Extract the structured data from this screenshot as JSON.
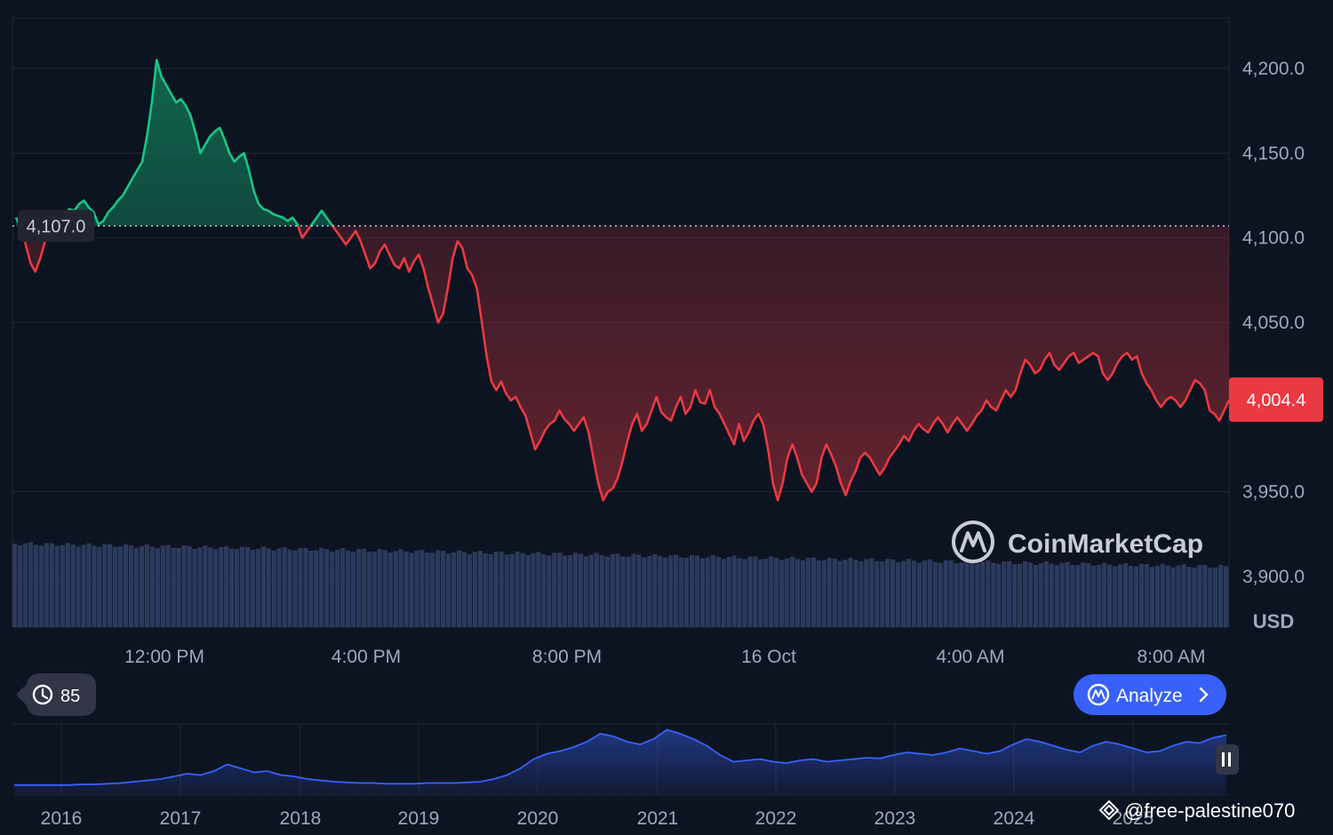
{
  "chart_data": {
    "type": "line",
    "title": "",
    "unit_label": "USD",
    "y_ticks": [
      "4,200.0",
      "4,150.0",
      "4,100.0",
      "4,050.0",
      "4,004.4",
      "3,950.0",
      "3,900.0"
    ],
    "ylim": [
      3870,
      4230
    ],
    "x_ticks": [
      "12:00 PM",
      "4:00 PM",
      "8:00 PM",
      "16 Oct",
      "4:00 AM",
      "8:00 AM"
    ],
    "reference_value": 4107.0,
    "reference_label": "4,107.0",
    "current_value": 4004.4,
    "current_label": "4,004.4",
    "series": [
      {
        "values": [
          4112,
          4106,
          4096,
          4085,
          4080,
          4088,
          4098,
          4104,
          4106,
          4110,
          4114,
          4117,
          4116,
          4120,
          4122,
          4118,
          4115,
          4108,
          4110,
          4115,
          4118,
          4122,
          4125,
          4130,
          4135,
          4140,
          4145,
          4160,
          4180,
          4205,
          4195,
          4190,
          4185,
          4180,
          4182,
          4178,
          4172,
          4162,
          4150,
          4155,
          4160,
          4163,
          4165,
          4158,
          4150,
          4145,
          4148,
          4150,
          4140,
          4128,
          4120,
          4117,
          4116,
          4114,
          4113,
          4112,
          4110,
          4112,
          4108,
          4100,
          4104,
          4108,
          4112,
          4116,
          4112,
          4108,
          4104,
          4100,
          4096,
          4100,
          4104,
          4098,
          4090,
          4082,
          4085,
          4092,
          4096,
          4090,
          4084,
          4082,
          4088,
          4080,
          4086,
          4090,
          4082,
          4070,
          4060,
          4050,
          4055,
          4070,
          4088,
          4098,
          4094,
          4082,
          4078,
          4070,
          4050,
          4030,
          4015,
          4010,
          4015,
          4008,
          4004,
          4006,
          4000,
          3995,
          3985,
          3975,
          3980,
          3986,
          3990,
          3992,
          3998,
          3993,
          3990,
          3986,
          3990,
          3994,
          3985,
          3970,
          3955,
          3945,
          3950,
          3952,
          3958,
          3968,
          3980,
          3990,
          3996,
          3986,
          3990,
          3998,
          4006,
          3997,
          3994,
          3992,
          4000,
          4006,
          3996,
          4000,
          4010,
          4003,
          4002,
          4010,
          4000,
          3996,
          3990,
          3984,
          3978,
          3990,
          3980,
          3985,
          3992,
          3996,
          3990,
          3975,
          3955,
          3945,
          3955,
          3970,
          3978,
          3970,
          3960,
          3955,
          3950,
          3955,
          3970,
          3978,
          3972,
          3965,
          3955,
          3948,
          3956,
          3962,
          3970,
          3973,
          3970,
          3965,
          3960,
          3964,
          3970,
          3974,
          3978,
          3983,
          3980,
          3986,
          3990,
          3987,
          3985,
          3990,
          3994,
          3990,
          3985,
          3990,
          3994,
          3990,
          3986,
          3990,
          3995,
          3998,
          4004,
          4000,
          3998,
          4004,
          4010,
          4006,
          4010,
          4020,
          4028,
          4025,
          4020,
          4022,
          4028,
          4032,
          4025,
          4022,
          4026,
          4030,
          4032,
          4026,
          4028,
          4030,
          4032,
          4030,
          4020,
          4016,
          4020,
          4026,
          4030,
          4032,
          4028,
          4030,
          4020,
          4014,
          4010,
          4004,
          4000,
          4004,
          4006,
          4004,
          4000,
          4004,
          4010,
          4016,
          4014,
          4010,
          3998,
          3996,
          3992,
          3998,
          4004
        ]
      }
    ],
    "overview": {
      "x_ticks": [
        "2016",
        "2017",
        "2018",
        "2019",
        "2020",
        "2021",
        "2022",
        "2023",
        "2024",
        "2025"
      ],
      "values": [
        15,
        15,
        15,
        15,
        15,
        16,
        16,
        17,
        18,
        20,
        22,
        24,
        28,
        32,
        30,
        36,
        46,
        40,
        34,
        36,
        30,
        28,
        24,
        22,
        20,
        19,
        18,
        18,
        17,
        17,
        17,
        18,
        18,
        18,
        19,
        20,
        24,
        30,
        40,
        54,
        62,
        66,
        72,
        80,
        92,
        88,
        80,
        76,
        84,
        98,
        92,
        84,
        74,
        60,
        50,
        52,
        54,
        50,
        48,
        52,
        54,
        50,
        52,
        54,
        56,
        55,
        60,
        64,
        62,
        60,
        64,
        70,
        66,
        62,
        66,
        76,
        84,
        80,
        74,
        68,
        64,
        74,
        80,
        76,
        70,
        64,
        66,
        74,
        80,
        78,
        86,
        90
      ]
    }
  },
  "ui": {
    "history_badge": "85",
    "analyze_button": "Analyze",
    "brand": "CoinMarketCap",
    "watermark": "@free-palestine070",
    "pause_icon": "pause-icon",
    "history_icon": "history-icon",
    "analyze_icon": "analyze-icon",
    "brand_icon": "coinmarketcap-logo-icon",
    "colors": {
      "background": "#0d1421",
      "up": "#16c784",
      "down": "#ea3943",
      "volume": "#2b3a5c",
      "overview_line": "#3861fb",
      "button": "#3861fb",
      "grid": "#222531"
    }
  }
}
